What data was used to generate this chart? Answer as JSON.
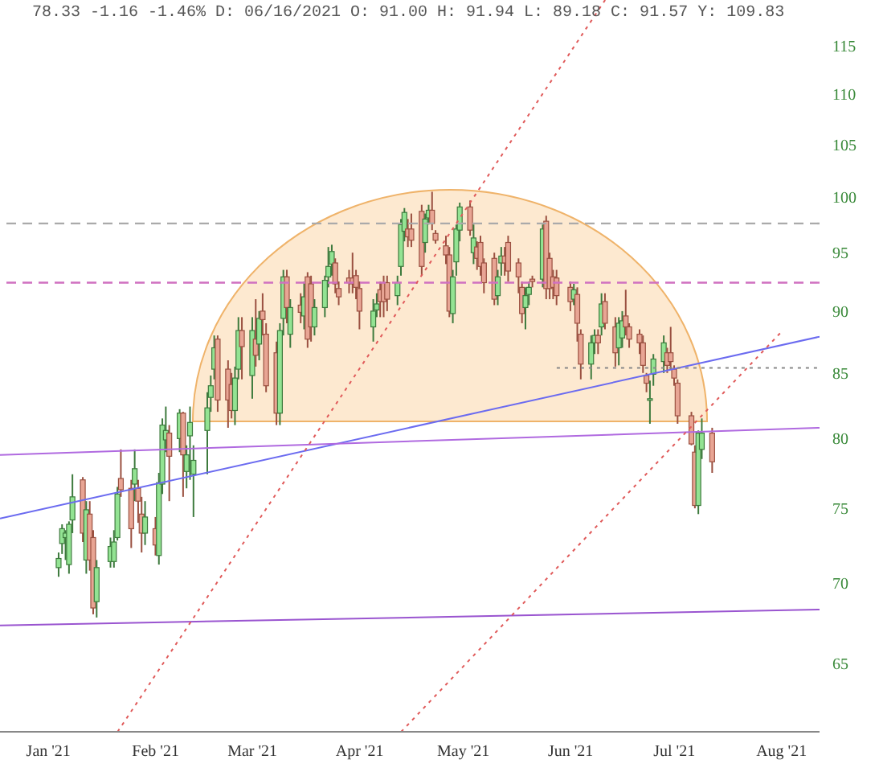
{
  "chart_data": {
    "type": "candlestick",
    "title": "78.33 -1.16 -1.46% D: 06/16/2021 O: 91.00 H: 91.94 L: 89.18 C: 91.57 Y: 109.83",
    "log": true,
    "ylim": [
      61,
      120
    ],
    "yticks": [
      65,
      70,
      75,
      80,
      85,
      90,
      95,
      100,
      105,
      110,
      115
    ],
    "xlim": [
      "2020-12-18",
      "2021-08-12"
    ],
    "xticks": [
      {
        "value": "2021-01-01",
        "label": "Jan '21"
      },
      {
        "value": "2021-02-01",
        "label": "Feb '21"
      },
      {
        "value": "2021-03-01",
        "label": "Mar '21"
      },
      {
        "value": "2021-04-01",
        "label": "Apr '21"
      },
      {
        "value": "2021-05-01",
        "label": "May '21"
      },
      {
        "value": "2021-06-01",
        "label": "Jun '21"
      },
      {
        "value": "2021-07-01",
        "label": "Jul '21"
      },
      {
        "value": "2021-08-01",
        "label": "Aug '21"
      }
    ],
    "x": [
      "2021-01-04",
      "2021-01-05",
      "2021-01-06",
      "2021-01-07",
      "2021-01-08",
      "2021-01-11",
      "2021-01-12",
      "2021-01-13",
      "2021-01-14",
      "2021-01-15",
      "2021-01-19",
      "2021-01-20",
      "2021-01-21",
      "2021-01-22",
      "2021-01-25",
      "2021-01-26",
      "2021-01-27",
      "2021-01-28",
      "2021-01-29",
      "2021-02-01",
      "2021-02-02",
      "2021-02-03",
      "2021-02-04",
      "2021-02-05",
      "2021-02-08",
      "2021-02-09",
      "2021-02-10",
      "2021-02-11",
      "2021-02-12",
      "2021-02-16",
      "2021-02-17",
      "2021-02-18",
      "2021-02-19",
      "2021-02-22",
      "2021-02-23",
      "2021-02-24",
      "2021-02-25",
      "2021-02-26",
      "2021-03-01",
      "2021-03-02",
      "2021-03-03",
      "2021-03-04",
      "2021-03-05",
      "2021-03-08",
      "2021-03-09",
      "2021-03-10",
      "2021-03-11",
      "2021-03-12",
      "2021-03-15",
      "2021-03-16",
      "2021-03-17",
      "2021-03-18",
      "2021-03-19",
      "2021-03-22",
      "2021-03-23",
      "2021-03-24",
      "2021-03-25",
      "2021-03-26",
      "2021-03-29",
      "2021-03-30",
      "2021-03-31",
      "2021-04-01",
      "2021-04-05",
      "2021-04-06",
      "2021-04-07",
      "2021-04-08",
      "2021-04-09",
      "2021-04-12",
      "2021-04-13",
      "2021-04-14",
      "2021-04-15",
      "2021-04-16",
      "2021-04-19",
      "2021-04-20",
      "2021-04-21",
      "2021-04-22",
      "2021-04-23",
      "2021-04-26",
      "2021-04-27",
      "2021-04-28",
      "2021-04-29",
      "2021-04-30",
      "2021-05-03",
      "2021-05-04",
      "2021-05-05",
      "2021-05-06",
      "2021-05-07",
      "2021-05-10",
      "2021-05-11",
      "2021-05-12",
      "2021-05-13",
      "2021-05-14",
      "2021-05-17",
      "2021-05-18",
      "2021-05-19",
      "2021-05-20",
      "2021-05-21",
      "2021-05-24",
      "2021-05-25",
      "2021-05-26",
      "2021-05-27",
      "2021-05-28",
      "2021-06-01",
      "2021-06-02",
      "2021-06-03",
      "2021-06-04",
      "2021-06-07",
      "2021-06-08",
      "2021-06-09",
      "2021-06-10",
      "2021-06-11",
      "2021-06-14",
      "2021-06-15",
      "2021-06-16",
      "2021-06-17",
      "2021-06-18",
      "2021-06-21",
      "2021-06-22",
      "2021-06-23",
      "2021-06-24",
      "2021-06-25",
      "2021-06-28",
      "2021-06-29",
      "2021-06-30",
      "2021-07-01",
      "2021-07-02",
      "2021-07-06",
      "2021-07-07",
      "2021-07-08",
      "2021-07-09",
      "2021-07-12"
    ],
    "ohlc": [
      [
        71.0,
        72.0,
        70.4,
        71.6
      ],
      [
        72.6,
        73.9,
        71.9,
        73.6
      ],
      [
        73.0,
        73.5,
        71.5,
        73.3
      ],
      [
        71.2,
        74.1,
        70.6,
        73.9
      ],
      [
        74.2,
        77.4,
        73.3,
        75.8
      ],
      [
        77.0,
        77.2,
        72.7,
        73.3
      ],
      [
        71.5,
        75.5,
        70.6,
        74.9
      ],
      [
        74.6,
        75.5,
        70.8,
        71.5
      ],
      [
        73.0,
        73.5,
        68.0,
        68.4
      ],
      [
        68.8,
        71.5,
        67.8,
        71.0
      ],
      [
        71.4,
        73.0,
        71.0,
        72.4
      ],
      [
        71.4,
        73.5,
        71.0,
        72.7
      ],
      [
        73.0,
        76.5,
        72.8,
        76.0
      ],
      [
        77.1,
        79.2,
        75.8,
        76.3
      ],
      [
        76.4,
        77.0,
        72.3,
        73.6
      ],
      [
        76.7,
        79.2,
        75.5,
        77.8
      ],
      [
        76.4,
        77.0,
        74.0,
        75.5
      ],
      [
        74.6,
        75.8,
        72.0,
        73.3
      ],
      [
        73.3,
        75.5,
        72.5,
        74.4
      ],
      [
        73.6,
        74.4,
        71.8,
        72.5
      ],
      [
        71.8,
        77.5,
        71.2,
        76.8
      ],
      [
        76.7,
        81.5,
        76.0,
        81.0
      ],
      [
        79.9,
        82.4,
        79.0,
        80.6
      ],
      [
        80.4,
        81.0,
        75.5,
        78.7
      ],
      [
        80.0,
        82.2,
        79.0,
        81.9
      ],
      [
        81.9,
        82.0,
        75.8,
        78.8
      ],
      [
        77.6,
        79.5,
        76.4,
        78.8
      ],
      [
        80.2,
        82.4,
        77.0,
        81.2
      ],
      [
        77.4,
        79.5,
        74.4,
        78.4
      ],
      [
        80.6,
        83.5,
        77.4,
        82.3
      ],
      [
        83.1,
        84.8,
        82.0,
        84.0
      ],
      [
        85.3,
        88.0,
        84.5,
        87.0
      ],
      [
        87.7,
        88.0,
        82.0,
        82.9
      ],
      [
        85.3,
        86.0,
        80.8,
        82.9
      ],
      [
        84.1,
        85.0,
        81.5,
        82.1
      ],
      [
        82.1,
        85.5,
        81.0,
        84.6
      ],
      [
        85.3,
        89.5,
        84.5,
        88.4
      ],
      [
        88.4,
        89.5,
        84.5,
        87.1
      ],
      [
        84.8,
        89.5,
        83.0,
        88.4
      ],
      [
        87.7,
        91.0,
        85.5,
        86.4
      ],
      [
        87.3,
        90.0,
        86.0,
        89.4
      ],
      [
        90.0,
        91.5,
        88.0,
        89.3
      ],
      [
        88.1,
        89.0,
        83.5,
        84.0
      ],
      [
        86.6,
        87.5,
        81.0,
        81.9
      ],
      [
        81.9,
        89.0,
        81.0,
        88.4
      ],
      [
        89.4,
        93.5,
        88.0,
        92.9
      ],
      [
        92.9,
        93.5,
        89.0,
        90.3
      ],
      [
        88.1,
        91.0,
        87.0,
        90.3
      ],
      [
        90.5,
        91.5,
        89.0,
        89.9
      ],
      [
        89.6,
        92.5,
        88.5,
        91.2
      ],
      [
        92.9,
        93.3,
        87.0,
        87.7
      ],
      [
        92.3,
        93.0,
        87.5,
        88.7
      ],
      [
        88.7,
        91.0,
        88.0,
        90.3
      ],
      [
        90.3,
        93.0,
        89.5,
        92.6
      ],
      [
        92.9,
        95.5,
        92.0,
        93.8
      ],
      [
        94.0,
        95.7,
        93.0,
        95.1
      ],
      [
        94.1,
        94.5,
        91.5,
        92.3
      ],
      [
        91.9,
        92.5,
        90.5,
        91.2
      ],
      [
        92.8,
        93.5,
        91.5,
        92.4
      ],
      [
        92.8,
        95.0,
        91.5,
        92.3
      ],
      [
        93.0,
        93.5,
        91.0,
        92.0
      ],
      [
        91.9,
        92.5,
        88.5,
        90.0
      ],
      [
        88.7,
        91.0,
        87.5,
        90.0
      ],
      [
        90.1,
        91.5,
        89.5,
        90.6
      ],
      [
        91.8,
        92.5,
        89.5,
        90.8
      ],
      [
        92.4,
        93.0,
        89.5,
        90.8
      ],
      [
        92.4,
        93.0,
        90.0,
        91.0
      ],
      [
        91.3,
        93.0,
        90.5,
        92.4
      ],
      [
        93.8,
        98.0,
        93.0,
        97.5
      ],
      [
        96.9,
        99.0,
        96.0,
        98.6
      ],
      [
        97.1,
        98.0,
        95.5,
        96.4
      ],
      [
        97.1,
        98.5,
        95.5,
        96.1
      ],
      [
        98.7,
        99.3,
        93.0,
        93.8
      ],
      [
        95.9,
        98.5,
        95.0,
        98.0
      ],
      [
        98.1,
        99.3,
        97.5,
        98.8
      ],
      [
        98.8,
        100.5,
        97.0,
        97.6
      ],
      [
        96.7,
        97.0,
        95.8,
        96.1
      ],
      [
        95.6,
        96.5,
        94.0,
        94.8
      ],
      [
        94.8,
        95.5,
        89.5,
        90.0
      ],
      [
        89.8,
        93.5,
        89.0,
        92.9
      ],
      [
        94.2,
        97.5,
        93.0,
        97.1
      ],
      [
        97.0,
        99.5,
        96.0,
        99.1
      ],
      [
        99.1,
        99.7,
        96.5,
        97.0
      ],
      [
        95.0,
        97.5,
        94.0,
        96.3
      ],
      [
        95.5,
        96.0,
        93.5,
        94.5
      ],
      [
        95.9,
        96.5,
        93.0,
        93.8
      ],
      [
        94.1,
        94.5,
        91.5,
        92.4
      ],
      [
        94.5,
        95.0,
        90.5,
        91.0
      ],
      [
        91.3,
        93.5,
        90.5,
        92.9
      ],
      [
        94.1,
        95.5,
        93.0,
        94.7
      ],
      [
        94.7,
        95.5,
        93.0,
        94.1
      ],
      [
        95.9,
        96.5,
        92.5,
        93.4
      ],
      [
        94.1,
        94.5,
        91.5,
        92.9
      ],
      [
        92.0,
        92.5,
        89.0,
        89.8
      ],
      [
        90.3,
        92.0,
        88.5,
        91.3
      ],
      [
        91.4,
        92.5,
        90.5,
        92.0
      ],
      [
        92.7,
        93.0,
        92.0,
        92.5
      ],
      [
        92.7,
        97.5,
        92.0,
        97.1
      ],
      [
        97.8,
        98.3,
        91.0,
        91.9
      ],
      [
        94.5,
        95.0,
        91.0,
        91.9
      ],
      [
        92.9,
        93.5,
        91.0,
        92.0
      ],
      [
        92.8,
        93.5,
        90.5,
        91.3
      ],
      [
        92.0,
        92.5,
        90.0,
        90.8
      ],
      [
        91.0,
        92.3,
        90.5,
        91.8
      ],
      [
        91.4,
        92.0,
        87.5,
        89.0
      ],
      [
        88.1,
        88.5,
        84.5,
        85.7
      ],
      [
        85.7,
        88.0,
        84.5,
        87.4
      ],
      [
        87.4,
        88.5,
        86.5,
        88.0
      ],
      [
        88.0,
        88.5,
        86.5,
        87.4
      ],
      [
        88.7,
        91.5,
        88.0,
        90.6
      ],
      [
        90.8,
        91.5,
        88.5,
        89.0
      ],
      [
        88.7,
        89.5,
        85.5,
        86.6
      ],
      [
        87.0,
        89.5,
        85.6,
        89.0
      ],
      [
        87.8,
        90.0,
        87.0,
        89.2
      ],
      [
        89.6,
        91.8,
        88.0,
        88.7
      ],
      [
        88.7,
        89.0,
        87.0,
        87.7
      ],
      [
        88.1,
        88.5,
        86.5,
        87.4
      ],
      [
        87.4,
        88.0,
        85.0,
        85.6
      ],
      [
        84.8,
        85.0,
        83.5,
        84.2
      ],
      [
        82.9,
        84.4,
        81.1,
        83.0
      ],
      [
        84.9,
        86.5,
        84.0,
        86.1
      ],
      [
        85.9,
        88.0,
        85.0,
        87.4
      ],
      [
        86.6,
        87.0,
        85.0,
        85.6
      ],
      [
        86.6,
        88.7,
        85.3,
        85.9
      ],
      [
        85.3,
        85.6,
        84.0,
        84.6
      ],
      [
        84.2,
        84.5,
        81.1,
        81.7
      ],
      [
        81.7,
        82.0,
        79.5,
        79.6
      ],
      [
        79.0,
        79.5,
        75.0,
        75.2
      ],
      [
        75.2,
        80.6,
        74.6,
        80.4
      ],
      [
        79.2,
        81.5,
        78.5,
        80.4
      ],
      [
        80.4,
        80.8,
        77.5,
        78.3
      ]
    ],
    "series": [
      {
        "type": "line",
        "color": "#6b6bf0",
        "x": [
          "2020-12-18",
          "2021-08-12"
        ],
        "values": [
          74.3,
          87.9
        ]
      },
      {
        "type": "line",
        "color": "#b06ae0",
        "x": [
          "2020-12-18",
          "2021-08-12"
        ],
        "values": [
          78.8,
          80.8
        ]
      },
      {
        "type": "line",
        "color": "#9a55d0",
        "x": [
          "2020-12-18",
          "2021-08-12"
        ],
        "values": [
          67.3,
          68.3
        ]
      },
      {
        "type": "line",
        "color": "#e05a5a",
        "line_style": "dotted",
        "x": [
          "2021-01-21",
          "2021-06-11"
        ],
        "values": [
          61,
          120
        ]
      },
      {
        "type": "line",
        "color": "#e05a5a",
        "line_style": "dotted",
        "x": [
          "2021-04-13",
          "2021-08-01"
        ],
        "values": [
          61,
          88.3
        ]
      },
      {
        "type": "line",
        "color": "#888888",
        "line_style": "dotted",
        "x": [
          "2021-05-28",
          "2021-08-12"
        ],
        "values": [
          85.4,
          85.4
        ]
      }
    ],
    "ref_lines": [
      {
        "axis": "y",
        "value": 97.6,
        "color": "#aaaaaa",
        "line_style": "dashed"
      },
      {
        "axis": "y",
        "value": 92.4,
        "color": "#d070c0",
        "line_style": "dashed"
      }
    ]
  }
}
